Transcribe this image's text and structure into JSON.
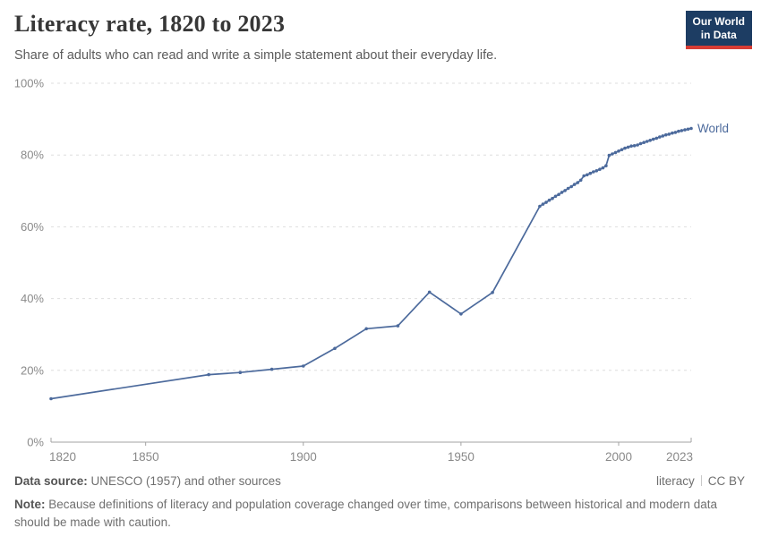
{
  "header": {
    "title": "Literacy rate, 1820 to 2023",
    "subtitle": "Share of adults who can read and write a simple statement about their everyday life.",
    "logo": {
      "line1": "Our World",
      "line2": "in Data",
      "bg": "#1d3d63",
      "accent": "#d73c34"
    }
  },
  "chart_data": {
    "type": "line",
    "title": "Literacy rate, 1820 to 2023",
    "xlabel": "",
    "ylabel": "",
    "xlim": [
      1820,
      2023
    ],
    "ylim": [
      0,
      100
    ],
    "grid": "horizontal-dashed",
    "legend": "line-end-label",
    "xticks": [
      {
        "value": 1820,
        "label": "1820"
      },
      {
        "value": 1850,
        "label": "1850"
      },
      {
        "value": 1900,
        "label": "1900"
      },
      {
        "value": 1950,
        "label": "1950"
      },
      {
        "value": 2000,
        "label": "2000"
      },
      {
        "value": 2023,
        "label": "2023"
      }
    ],
    "yticks": [
      {
        "value": 0,
        "label": "0%"
      },
      {
        "value": 20,
        "label": "20%"
      },
      {
        "value": 40,
        "label": "40%"
      },
      {
        "value": 60,
        "label": "60%"
      },
      {
        "value": 80,
        "label": "80%"
      },
      {
        "value": 100,
        "label": "100%"
      }
    ],
    "colors": {
      "grid": "#dedede",
      "axis": "#a3a3a3",
      "tick": "#8a8a8a"
    },
    "series": [
      {
        "name": "World",
        "color": "#4c6a9c",
        "points": [
          [
            1820,
            12.1
          ],
          [
            1870,
            18.8
          ],
          [
            1880,
            19.4
          ],
          [
            1890,
            20.3
          ],
          [
            1900,
            21.2
          ],
          [
            1910,
            26.1
          ],
          [
            1920,
            31.6
          ],
          [
            1930,
            32.4
          ],
          [
            1940,
            41.8
          ],
          [
            1950,
            35.7
          ],
          [
            1960,
            41.7
          ],
          [
            1975,
            65.7
          ],
          [
            1976,
            66.3
          ],
          [
            1977,
            66.8
          ],
          [
            1978,
            67.4
          ],
          [
            1979,
            67.9
          ],
          [
            1980,
            68.5
          ],
          [
            1981,
            69.0
          ],
          [
            1982,
            69.6
          ],
          [
            1983,
            70.1
          ],
          [
            1984,
            70.7
          ],
          [
            1985,
            71.2
          ],
          [
            1986,
            71.8
          ],
          [
            1987,
            72.3
          ],
          [
            1988,
            73.0
          ],
          [
            1989,
            74.2
          ],
          [
            1990,
            74.5
          ],
          [
            1991,
            74.9
          ],
          [
            1992,
            75.3
          ],
          [
            1993,
            75.6
          ],
          [
            1994,
            76.0
          ],
          [
            1995,
            76.4
          ],
          [
            1996,
            77.0
          ],
          [
            1997,
            79.9
          ],
          [
            1998,
            80.3
          ],
          [
            1999,
            80.7
          ],
          [
            2000,
            81.1
          ],
          [
            2001,
            81.5
          ],
          [
            2002,
            81.9
          ],
          [
            2003,
            82.2
          ],
          [
            2004,
            82.5
          ],
          [
            2005,
            82.6
          ],
          [
            2006,
            82.8
          ],
          [
            2007,
            83.2
          ],
          [
            2008,
            83.5
          ],
          [
            2009,
            83.8
          ],
          [
            2010,
            84.1
          ],
          [
            2011,
            84.4
          ],
          [
            2012,
            84.7
          ],
          [
            2013,
            85.0
          ],
          [
            2014,
            85.3
          ],
          [
            2015,
            85.6
          ],
          [
            2016,
            85.8
          ],
          [
            2017,
            86.1
          ],
          [
            2018,
            86.3
          ],
          [
            2019,
            86.6
          ],
          [
            2020,
            86.8
          ],
          [
            2021,
            87.0
          ],
          [
            2022,
            87.2
          ],
          [
            2023,
            87.4
          ]
        ]
      }
    ]
  },
  "footer": {
    "source_label": "Data source:",
    "source_text": "UNESCO (1957) and other sources",
    "link_primary": "literacy",
    "license": "CC BY",
    "note_label": "Note:",
    "note_text": "Because definitions of literacy and population coverage changed over time, comparisons between historical and modern data should be made with caution."
  }
}
